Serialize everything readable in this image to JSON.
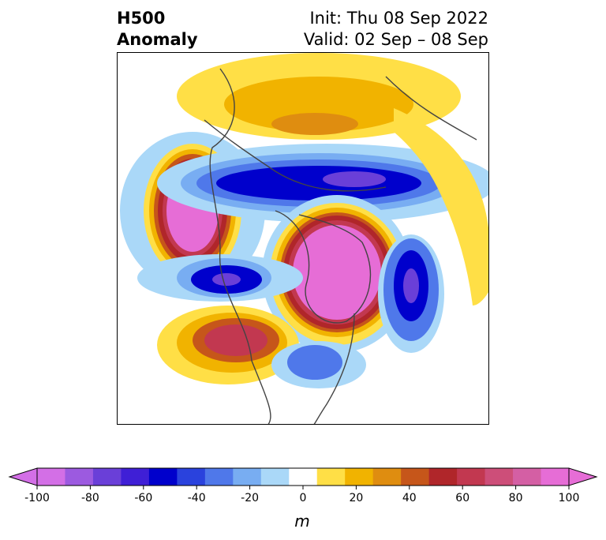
{
  "title": {
    "left_line1": "H500",
    "left_line2": "Anomaly",
    "right_line1": "Init: Thu 08 Sep 2022",
    "right_line2": "Valid: 02 Sep – 08 Sep"
  },
  "colorbar": {
    "unit": "m",
    "ticks": [
      "-100",
      "-80",
      "-60",
      "-40",
      "-20",
      "0",
      "20",
      "40",
      "60",
      "80",
      "100"
    ],
    "colors": [
      "#d36fe6",
      "#9c5ae0",
      "#6a3fd8",
      "#3f1fd6",
      "#0000cc",
      "#2a42dd",
      "#4f78ea",
      "#78adf2",
      "#aad8f8",
      "#ffffff",
      "#ffdf46",
      "#f1b300",
      "#df8d10",
      "#c6561a",
      "#b0262a",
      "#c23850",
      "#cd4e79",
      "#d45fa4",
      "#e66dd6"
    ],
    "under_color": "#d36fe6",
    "over_color": "#e66dd6"
  },
  "anomalies": [
    {
      "id": "ridge-north-pacific",
      "label": "positive"
    },
    {
      "id": "ridge-arctic-greenland",
      "label": "positive"
    },
    {
      "id": "ridge-southwest-us",
      "label": "positive"
    },
    {
      "id": "trough-siberia",
      "label": "negative"
    },
    {
      "id": "trough-gulf-of-alaska",
      "label": "negative"
    },
    {
      "id": "trough-north-atlantic",
      "label": "negative"
    },
    {
      "id": "trough-eastern-us",
      "label": "negative"
    },
    {
      "id": "ridge-russia",
      "label": "positive"
    },
    {
      "id": "ridge-europe-arc",
      "label": "positive"
    }
  ]
}
